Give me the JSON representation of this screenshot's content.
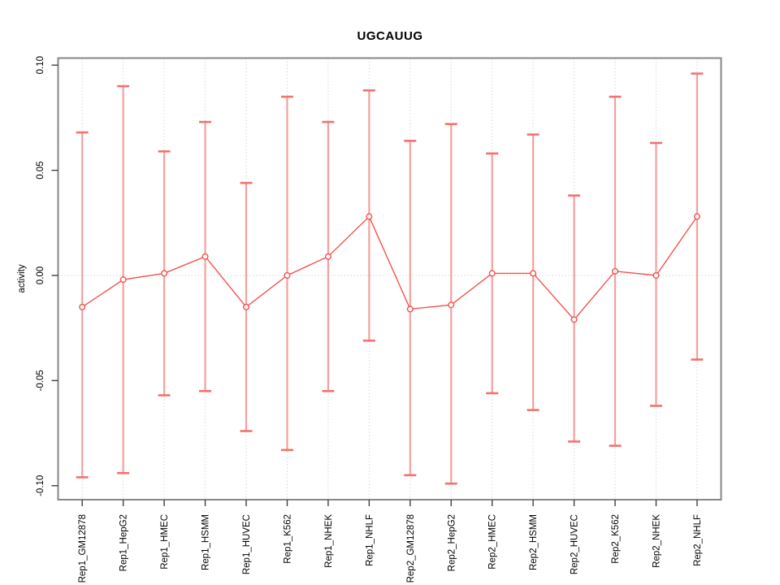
{
  "window": {
    "title": "UGCAUUG"
  },
  "chart_data": {
    "type": "line",
    "title": "UGCAUUG",
    "xlabel": "",
    "ylabel": "activity",
    "ylim": [
      -0.1,
      0.1
    ],
    "yticks": [
      0.1,
      0.05,
      0.0,
      -0.05,
      -0.1
    ],
    "ytick_labels": [
      "0.10",
      "0.05",
      "0.00",
      "-0.05",
      "-0.10"
    ],
    "grid": {
      "vertical_dotted_per_category": true,
      "horizontal_dotted_at_zero": true
    },
    "legend_position": "none",
    "marker": "open-circle",
    "error_bars": true,
    "categories": [
      "Rep1_GM12878",
      "Rep1_HepG2",
      "Rep1_HMEC",
      "Rep1_HSMM",
      "Rep1_HUVEC",
      "Rep1_K562",
      "Rep1_NHEK",
      "Rep1_NHLF",
      "Rep2_GM12878",
      "Rep2_HepG2",
      "Rep2_HMEC",
      "Rep2_HSMM",
      "Rep2_HUVEC",
      "Rep2_K562",
      "Rep2_NHEK",
      "Rep2_NHLF"
    ],
    "series": [
      {
        "name": "activity",
        "values": [
          -0.015,
          -0.002,
          0.001,
          0.009,
          -0.015,
          0.0,
          0.009,
          0.028,
          -0.016,
          -0.014,
          0.001,
          0.001,
          -0.021,
          0.002,
          0.0,
          0.028
        ],
        "error_high": [
          0.068,
          0.09,
          0.059,
          0.073,
          0.044,
          0.085,
          0.073,
          0.088,
          0.064,
          0.072,
          0.058,
          0.067,
          0.038,
          0.085,
          0.063,
          0.096
        ],
        "error_low": [
          -0.096,
          -0.094,
          -0.057,
          -0.055,
          -0.074,
          -0.083,
          -0.055,
          -0.031,
          -0.095,
          -0.099,
          -0.056,
          -0.064,
          -0.079,
          -0.081,
          -0.062,
          -0.04
        ]
      }
    ]
  },
  "colors": {
    "series_red": "#f4524d",
    "error_stem": "#f5a09e",
    "error_cap": "#f4716c",
    "grid_gray": "#d8d8d8",
    "box_gray": "#878787",
    "tick_dark": "#404040",
    "text_black": "#000000",
    "background": "#ffffff"
  }
}
